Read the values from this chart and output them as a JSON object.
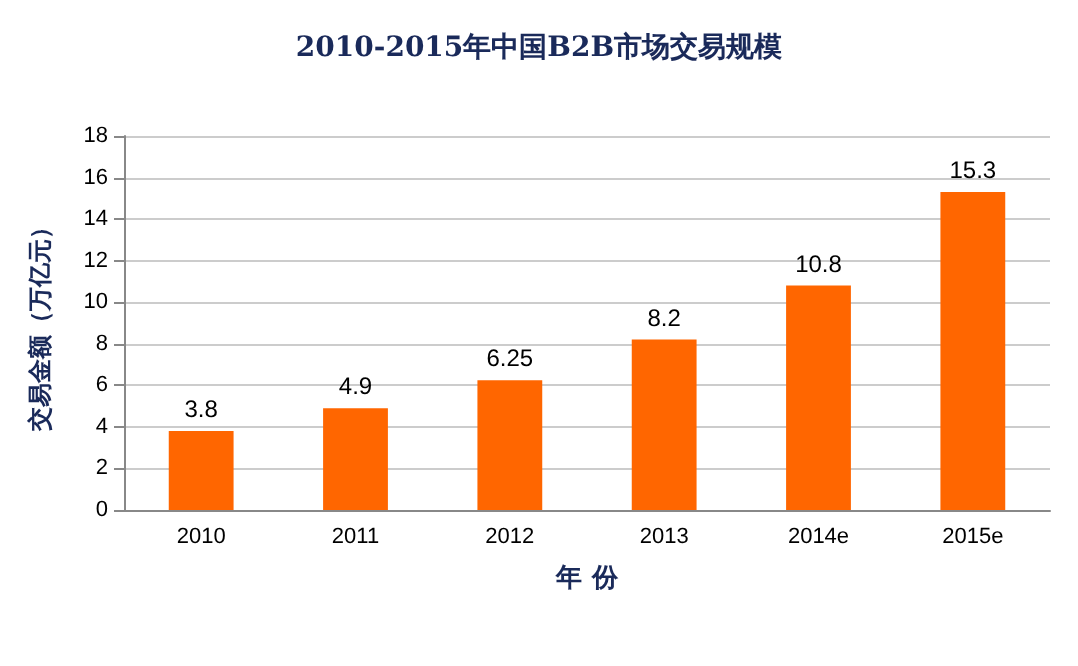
{
  "chart_data": {
    "type": "bar",
    "title": "2010-2015年中国B2B市场交易规模",
    "xlabel": "年 份",
    "ylabel": "交易金额（万亿元）",
    "categories": [
      "2010",
      "2011",
      "2012",
      "2013",
      "2014e",
      "2015e"
    ],
    "values": [
      3.8,
      4.9,
      6.25,
      8.2,
      10.8,
      15.3
    ],
    "color": "#ff6600",
    "ylim": [
      0,
      18
    ],
    "yticks": [
      0,
      2,
      4,
      6,
      8,
      10,
      12,
      14,
      16,
      18
    ],
    "grid": "y",
    "data_labels": true
  }
}
